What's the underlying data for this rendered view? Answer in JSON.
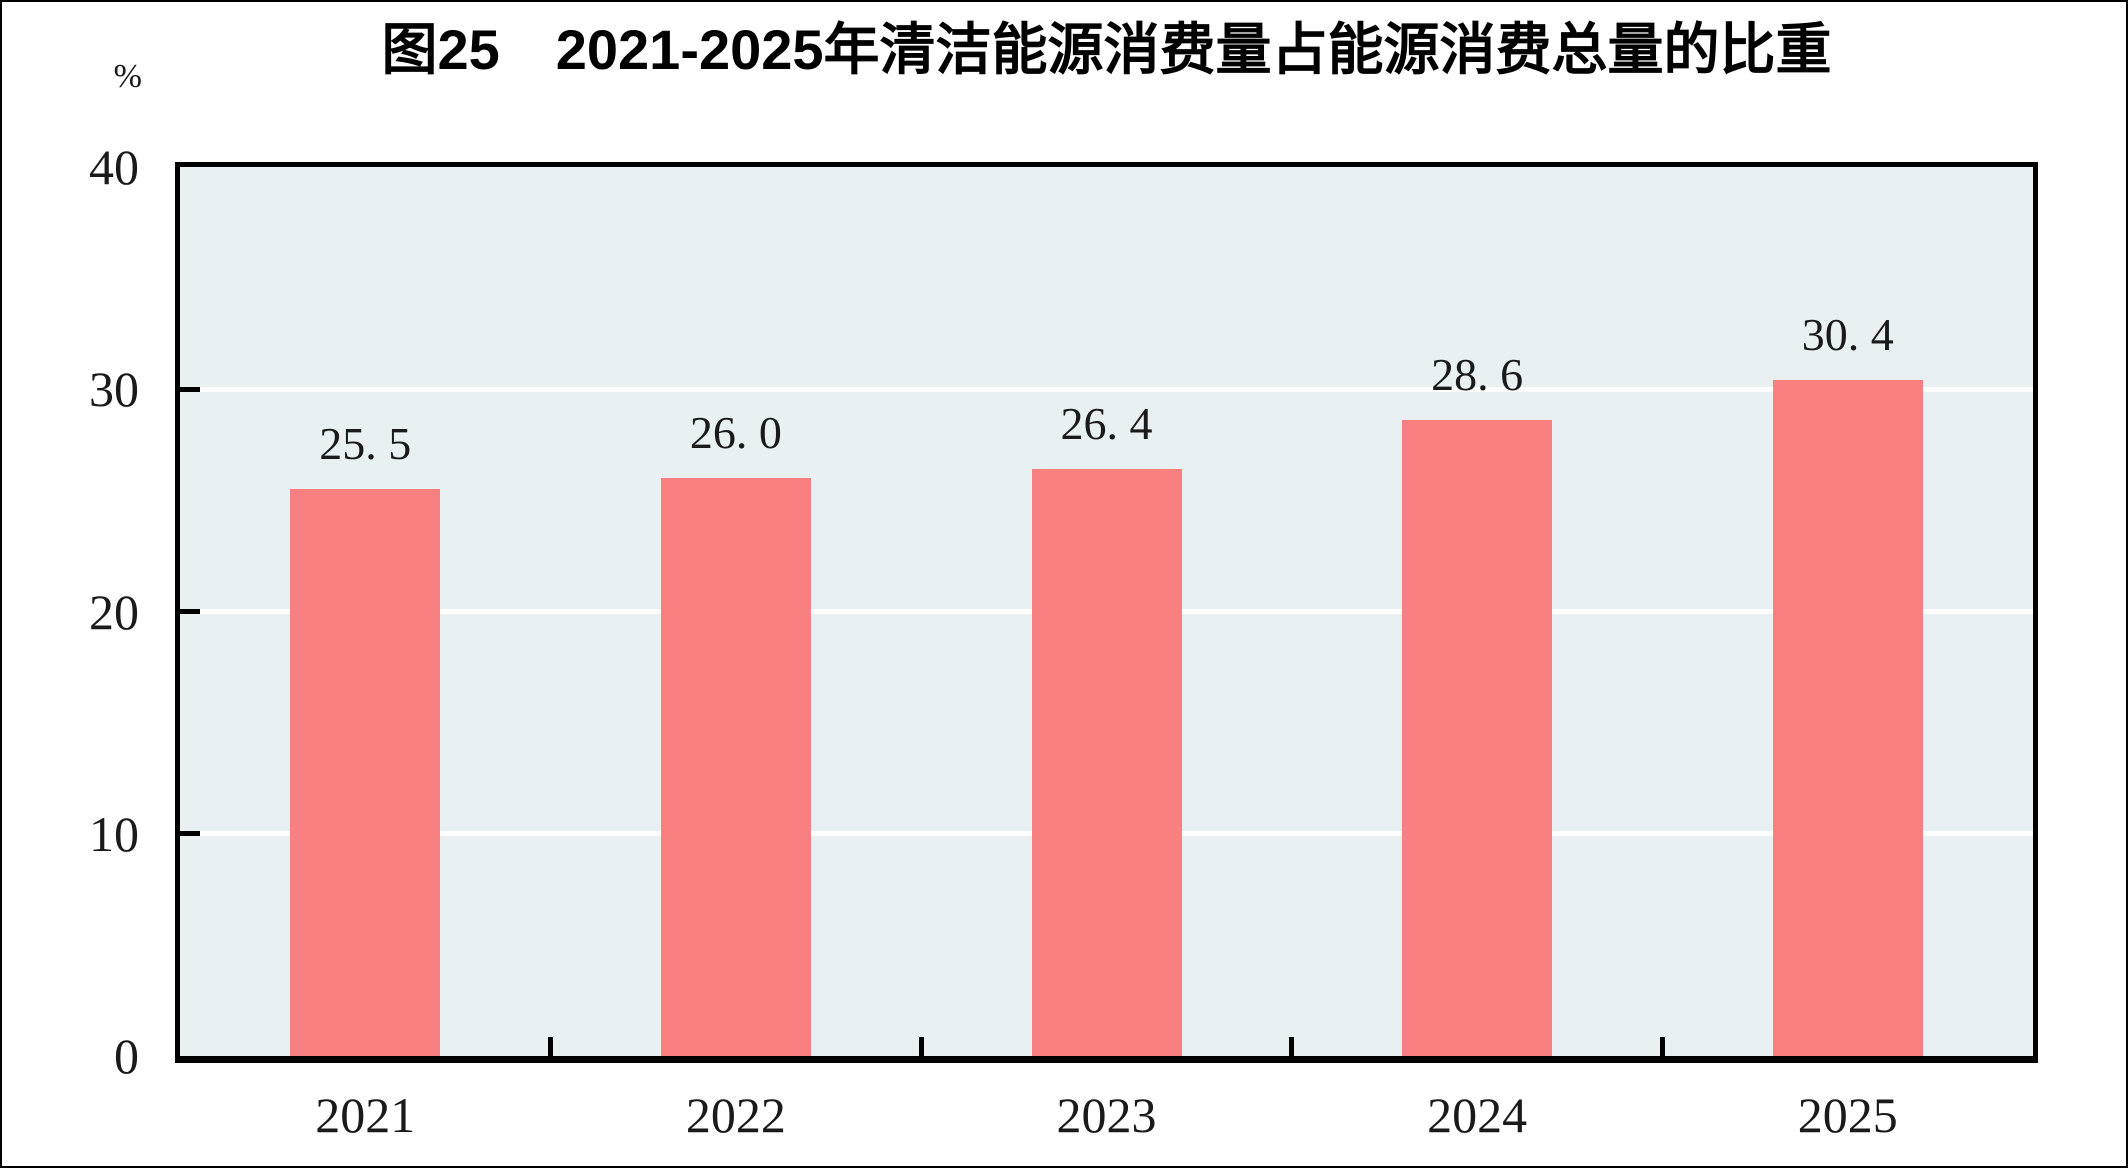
{
  "page": {
    "background": "#FFFFFF",
    "outer_border_color": "#000000"
  },
  "chart_data": {
    "type": "bar",
    "title": "图25　2021-2025年清洁能源消费量占能源消费总量的比重",
    "unit_label": "%",
    "categories": [
      "2021",
      "2022",
      "2023",
      "2024",
      "2025"
    ],
    "values": [
      25.5,
      26.0,
      26.4,
      28.6,
      30.4
    ],
    "bar_display_labels": [
      "25. 5",
      "26. 0",
      "26. 4",
      "28. 6",
      "30. 4"
    ],
    "series_name": "清洁能源消费量占能源消费总量的比重",
    "xlabel": "",
    "ylabel": "%",
    "ylim": [
      0,
      40
    ],
    "y_tick_values": [
      0,
      10,
      20,
      30,
      40
    ],
    "y_tick_labels": [
      "0",
      "10",
      "20",
      "30",
      "40"
    ],
    "gridlines": {
      "orientation": "horizontal",
      "at_values": [
        10,
        20,
        30
      ],
      "color": "#FFFFFF"
    },
    "legend": "none",
    "colors": {
      "bar": "#F98080",
      "plot_background": "#E8F0F2",
      "grid": "#FFFFFF",
      "axis": "#000000",
      "text": "#1A1A1A",
      "title_text": "#000000"
    }
  }
}
